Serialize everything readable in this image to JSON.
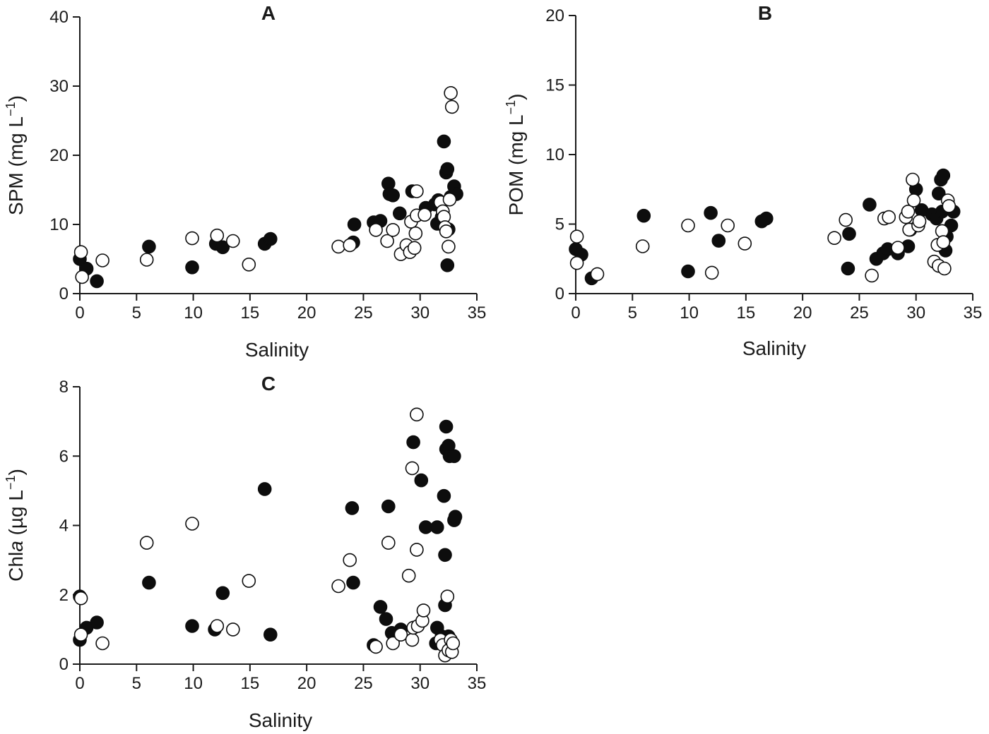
{
  "chart_data": [
    {
      "type": "scatter",
      "panel_label": "A",
      "title": "A",
      "xlabel": "Salinity",
      "ylabel": "SPM (mg L⁻¹)",
      "ylabel_main": "SPM (mg L",
      "ylabel_sup": "−1",
      "ylabel_close": ")",
      "xlim": [
        0,
        35
      ],
      "ylim": [
        0,
        40
      ],
      "xticks": [
        0,
        5,
        10,
        15,
        20,
        25,
        30,
        35
      ],
      "yticks": [
        0,
        10,
        20,
        30,
        40
      ],
      "series": [
        {
          "name": "filled",
          "style": "filled",
          "points": [
            [
              0.0,
              5.0
            ],
            [
              0.6,
              3.6
            ],
            [
              1.5,
              1.8
            ],
            [
              6.1,
              6.8
            ],
            [
              9.9,
              3.8
            ],
            [
              12.0,
              7.2
            ],
            [
              12.6,
              6.7
            ],
            [
              16.3,
              7.2
            ],
            [
              16.8,
              7.9
            ],
            [
              24.1,
              7.4
            ],
            [
              24.2,
              10.0
            ],
            [
              25.9,
              10.3
            ],
            [
              26.5,
              10.5
            ],
            [
              27.2,
              15.9
            ],
            [
              27.3,
              14.4
            ],
            [
              27.6,
              14.2
            ],
            [
              28.2,
              11.6
            ],
            [
              29.3,
              14.8
            ],
            [
              30.5,
              12.4
            ],
            [
              31.3,
              12.9
            ],
            [
              31.5,
              10.1
            ],
            [
              31.6,
              13.5
            ],
            [
              31.9,
              11.0
            ],
            [
              32.1,
              22.0
            ],
            [
              32.3,
              17.5
            ],
            [
              32.4,
              18.0
            ],
            [
              32.4,
              4.1
            ],
            [
              32.5,
              9.3
            ],
            [
              32.7,
              14.0
            ],
            [
              33.0,
              15.5
            ],
            [
              33.2,
              14.4
            ]
          ]
        },
        {
          "name": "open",
          "style": "open",
          "points": [
            [
              0.1,
              6.0
            ],
            [
              0.2,
              2.4
            ],
            [
              2.0,
              4.8
            ],
            [
              5.9,
              4.9
            ],
            [
              9.9,
              8.0
            ],
            [
              12.1,
              8.4
            ],
            [
              13.5,
              7.6
            ],
            [
              14.9,
              4.2
            ],
            [
              22.8,
              6.8
            ],
            [
              23.8,
              7.0
            ],
            [
              26.1,
              9.2
            ],
            [
              27.1,
              7.6
            ],
            [
              27.6,
              9.2
            ],
            [
              28.3,
              5.7
            ],
            [
              28.8,
              7.0
            ],
            [
              29.1,
              6.0
            ],
            [
              29.2,
              10.4
            ],
            [
              29.5,
              6.6
            ],
            [
              29.6,
              8.7
            ],
            [
              29.7,
              14.8
            ],
            [
              29.7,
              11.3
            ],
            [
              30.4,
              11.4
            ],
            [
              31.8,
              13.2
            ],
            [
              32.0,
              11.9
            ],
            [
              32.1,
              11.1
            ],
            [
              32.2,
              9.6
            ],
            [
              32.3,
              9.0
            ],
            [
              32.5,
              6.8
            ],
            [
              32.6,
              13.6
            ],
            [
              32.7,
              29.0
            ],
            [
              32.8,
              27.0
            ]
          ]
        }
      ]
    },
    {
      "type": "scatter",
      "panel_label": "B",
      "title": "B",
      "xlabel": "Salinity",
      "ylabel": "POM (mg L⁻¹)",
      "ylabel_main": "POM (mg L",
      "ylabel_sup": "−1",
      "ylabel_close": ")",
      "xlim": [
        0,
        35
      ],
      "ylim": [
        0,
        20
      ],
      "xticks": [
        0,
        5,
        10,
        15,
        20,
        25,
        30,
        35
      ],
      "yticks": [
        0,
        5,
        10,
        15,
        20
      ],
      "series": [
        {
          "name": "filled",
          "style": "filled",
          "points": [
            [
              0.0,
              3.2
            ],
            [
              0.5,
              2.8
            ],
            [
              1.4,
              1.1
            ],
            [
              6.0,
              5.6
            ],
            [
              9.9,
              1.6
            ],
            [
              11.9,
              5.8
            ],
            [
              12.6,
              3.8
            ],
            [
              16.4,
              5.2
            ],
            [
              16.8,
              5.4
            ],
            [
              24.0,
              1.8
            ],
            [
              24.1,
              4.3
            ],
            [
              25.9,
              6.4
            ],
            [
              26.5,
              2.5
            ],
            [
              27.1,
              2.9
            ],
            [
              27.5,
              3.2
            ],
            [
              28.4,
              2.9
            ],
            [
              29.3,
              3.4
            ],
            [
              29.5,
              4.6
            ],
            [
              30.0,
              7.5
            ],
            [
              30.5,
              6.0
            ],
            [
              31.4,
              5.7
            ],
            [
              31.8,
              5.4
            ],
            [
              32.0,
              7.2
            ],
            [
              32.2,
              8.2
            ],
            [
              32.3,
              5.9
            ],
            [
              32.4,
              8.5
            ],
            [
              32.6,
              3.1
            ],
            [
              32.7,
              4.1
            ],
            [
              32.9,
              6.1
            ],
            [
              33.1,
              4.9
            ],
            [
              33.3,
              5.9
            ]
          ]
        },
        {
          "name": "open",
          "style": "open",
          "points": [
            [
              0.1,
              4.1
            ],
            [
              0.1,
              2.2
            ],
            [
              1.9,
              1.4
            ],
            [
              5.9,
              3.4
            ],
            [
              9.9,
              4.9
            ],
            [
              12.0,
              1.5
            ],
            [
              13.4,
              4.9
            ],
            [
              14.9,
              3.6
            ],
            [
              22.8,
              4.0
            ],
            [
              23.8,
              5.3
            ],
            [
              26.1,
              1.3
            ],
            [
              27.2,
              5.4
            ],
            [
              27.6,
              5.5
            ],
            [
              28.4,
              3.3
            ],
            [
              29.1,
              5.5
            ],
            [
              29.3,
              5.9
            ],
            [
              29.4,
              4.6
            ],
            [
              29.7,
              8.2
            ],
            [
              29.8,
              6.7
            ],
            [
              30.2,
              4.9
            ],
            [
              30.3,
              5.2
            ],
            [
              31.6,
              2.3
            ],
            [
              31.9,
              3.5
            ],
            [
              32.0,
              2.0
            ],
            [
              32.3,
              4.5
            ],
            [
              32.4,
              3.7
            ],
            [
              32.5,
              1.8
            ],
            [
              32.8,
              6.7
            ],
            [
              32.9,
              6.3
            ]
          ]
        }
      ]
    },
    {
      "type": "scatter",
      "panel_label": "C",
      "title": "C",
      "xlabel": "Salinity",
      "ylabel": "Chla (µg L⁻¹)",
      "ylabel_main": "Chl",
      "ylabel_italic": "a",
      "ylabel_unit": " (µg L",
      "ylabel_sup": "−1",
      "ylabel_close": ")",
      "xlim": [
        0,
        35
      ],
      "ylim": [
        0,
        8
      ],
      "xticks": [
        0,
        5,
        10,
        15,
        20,
        25,
        30,
        35
      ],
      "yticks": [
        0,
        2,
        4,
        6,
        8
      ],
      "series": [
        {
          "name": "filled",
          "style": "filled",
          "points": [
            [
              0.0,
              1.95
            ],
            [
              0.0,
              0.7
            ],
            [
              0.6,
              1.05
            ],
            [
              1.5,
              1.2
            ],
            [
              6.1,
              2.35
            ],
            [
              9.9,
              1.1
            ],
            [
              11.9,
              1.0
            ],
            [
              12.6,
              2.05
            ],
            [
              16.3,
              5.05
            ],
            [
              16.8,
              0.85
            ],
            [
              24.0,
              4.5
            ],
            [
              24.1,
              2.35
            ],
            [
              25.9,
              0.55
            ],
            [
              26.5,
              1.65
            ],
            [
              27.0,
              1.3
            ],
            [
              27.2,
              4.55
            ],
            [
              27.5,
              0.9
            ],
            [
              28.3,
              1.0
            ],
            [
              29.4,
              6.4
            ],
            [
              30.1,
              5.3
            ],
            [
              30.5,
              3.95
            ],
            [
              31.5,
              3.95
            ],
            [
              31.4,
              0.6
            ],
            [
              31.5,
              1.05
            ],
            [
              31.9,
              0.8
            ],
            [
              32.1,
              4.85
            ],
            [
              32.2,
              1.7
            ],
            [
              32.2,
              3.15
            ],
            [
              32.3,
              6.85
            ],
            [
              32.3,
              6.2
            ],
            [
              32.5,
              6.3
            ],
            [
              32.6,
              6.0
            ],
            [
              32.5,
              0.8
            ],
            [
              33.0,
              6.0
            ],
            [
              33.0,
              4.15
            ],
            [
              33.1,
              4.25
            ]
          ]
        },
        {
          "name": "open",
          "style": "open",
          "points": [
            [
              0.1,
              1.9
            ],
            [
              0.1,
              0.85
            ],
            [
              2.0,
              0.6
            ],
            [
              5.9,
              3.5
            ],
            [
              9.9,
              4.05
            ],
            [
              12.1,
              1.1
            ],
            [
              13.5,
              1.0
            ],
            [
              14.9,
              2.4
            ],
            [
              22.8,
              2.25
            ],
            [
              23.8,
              3.0
            ],
            [
              26.1,
              0.5
            ],
            [
              27.2,
              3.5
            ],
            [
              27.6,
              0.6
            ],
            [
              28.3,
              0.85
            ],
            [
              29.0,
              2.55
            ],
            [
              29.3,
              5.65
            ],
            [
              29.3,
              0.7
            ],
            [
              29.4,
              1.05
            ],
            [
              29.7,
              7.2
            ],
            [
              29.7,
              3.3
            ],
            [
              29.8,
              1.1
            ],
            [
              30.2,
              1.25
            ],
            [
              30.3,
              1.55
            ],
            [
              31.8,
              0.7
            ],
            [
              32.0,
              0.55
            ],
            [
              32.2,
              0.25
            ],
            [
              32.4,
              1.95
            ],
            [
              32.5,
              0.4
            ],
            [
              32.7,
              0.7
            ],
            [
              32.8,
              0.35
            ],
            [
              32.9,
              0.6
            ]
          ]
        }
      ]
    }
  ],
  "colors": {
    "marker_fill": "#0d0d0d",
    "marker_stroke": "#0d0d0d",
    "open_fill": "#ffffff",
    "axis": "#1a1a1a"
  }
}
